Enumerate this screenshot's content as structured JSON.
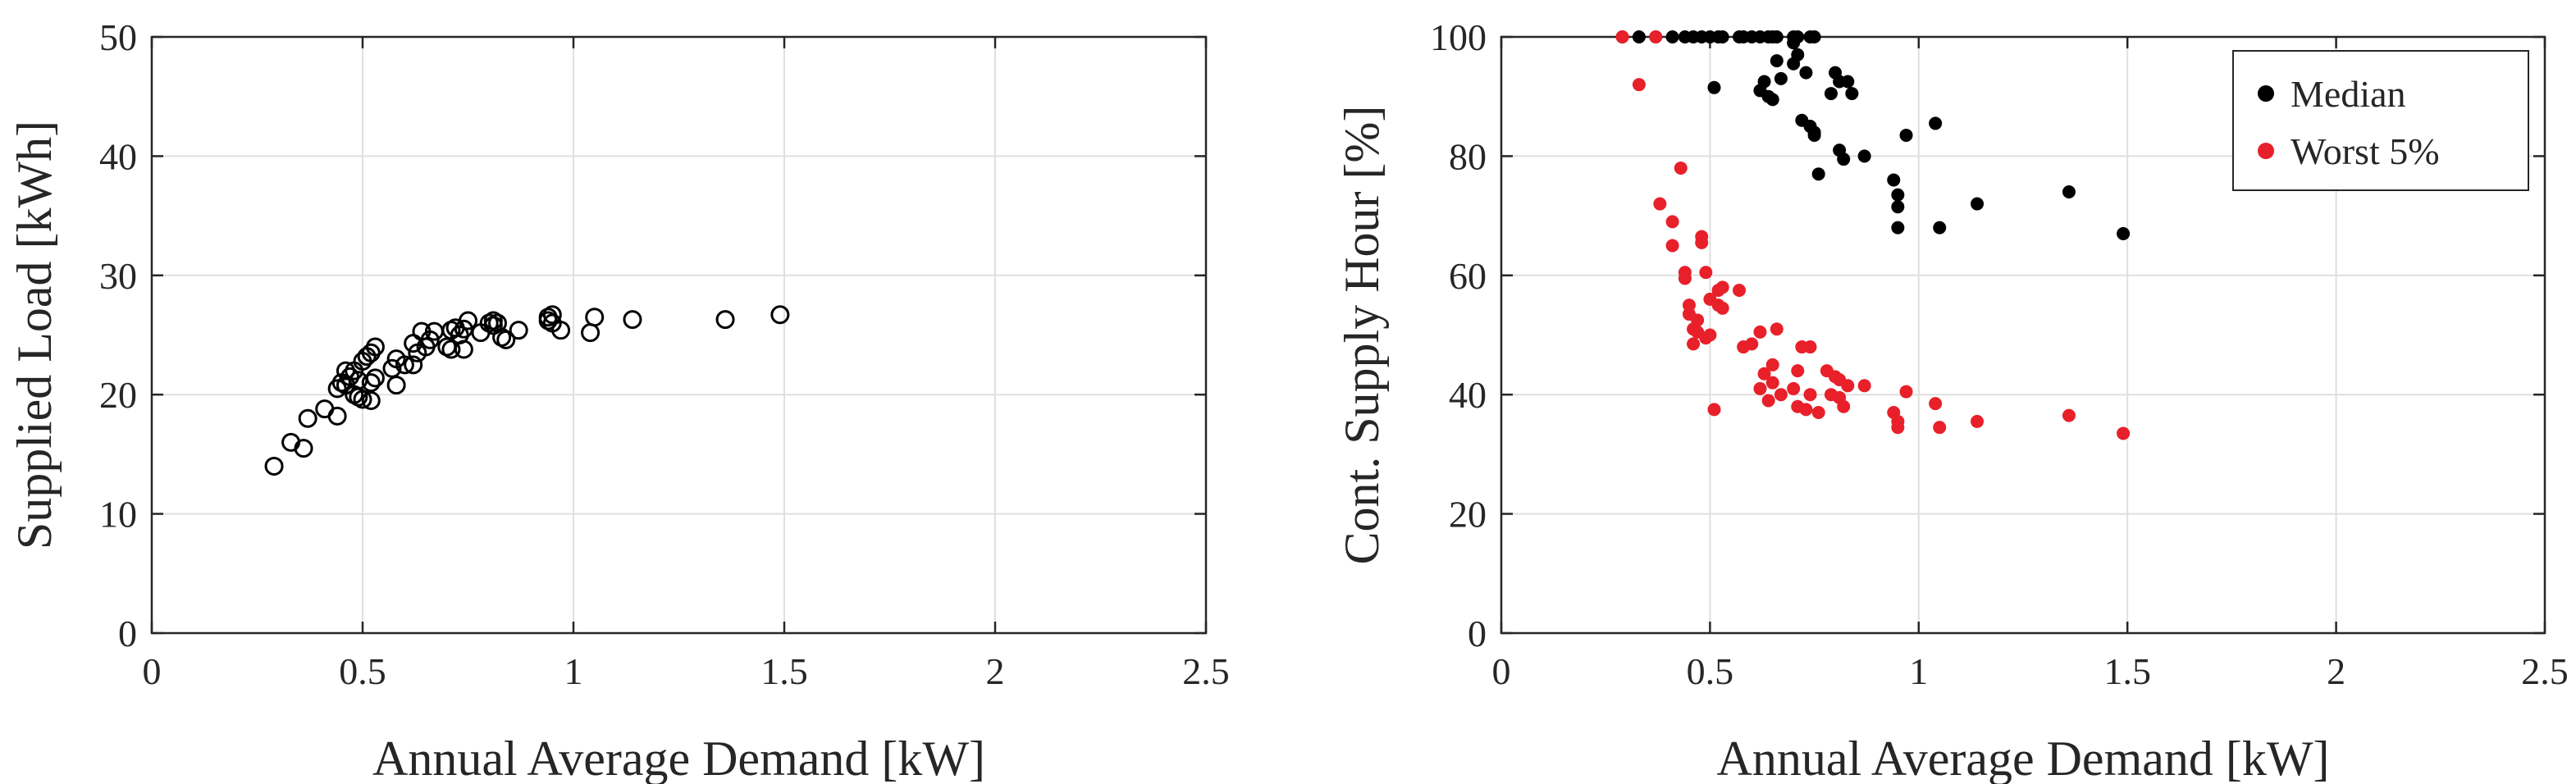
{
  "chart_data": [
    {
      "type": "scatter",
      "title": "",
      "xlabel": "Annual Average Demand [kW]",
      "ylabel": "Supplied Load [kWh]",
      "xlim": [
        0,
        2.5
      ],
      "ylim": [
        0,
        50
      ],
      "xticks": [
        0,
        0.5,
        1,
        1.5,
        2,
        2.5
      ],
      "yticks": [
        0,
        10,
        20,
        30,
        40,
        50
      ],
      "xtick_labels": [
        "0",
        "0.5",
        "1",
        "1.5",
        "2",
        "2.5"
      ],
      "ytick_labels": [
        "0",
        "10",
        "20",
        "30",
        "40",
        "50"
      ],
      "grid": true,
      "series": [
        {
          "name": "Supplied Load",
          "marker": "open-circle",
          "color": "#000000",
          "points": [
            [
              0.29,
              14.0
            ],
            [
              0.33,
              16.0
            ],
            [
              0.36,
              15.5
            ],
            [
              0.37,
              18.0
            ],
            [
              0.41,
              18.8
            ],
            [
              0.44,
              18.2
            ],
            [
              0.44,
              20.5
            ],
            [
              0.45,
              21.0
            ],
            [
              0.46,
              20.8
            ],
            [
              0.46,
              22.0
            ],
            [
              0.47,
              21.5
            ],
            [
              0.48,
              22.0
            ],
            [
              0.48,
              20.0
            ],
            [
              0.49,
              19.8
            ],
            [
              0.49,
              21.2
            ],
            [
              0.5,
              19.6
            ],
            [
              0.5,
              22.8
            ],
            [
              0.51,
              23.2
            ],
            [
              0.52,
              23.5
            ],
            [
              0.52,
              21.0
            ],
            [
              0.52,
              19.5
            ],
            [
              0.53,
              21.4
            ],
            [
              0.53,
              24.0
            ],
            [
              0.57,
              22.2
            ],
            [
              0.58,
              20.8
            ],
            [
              0.58,
              23.0
            ],
            [
              0.6,
              22.5
            ],
            [
              0.62,
              22.5
            ],
            [
              0.62,
              24.3
            ],
            [
              0.63,
              23.5
            ],
            [
              0.64,
              25.3
            ],
            [
              0.65,
              24.0
            ],
            [
              0.66,
              24.6
            ],
            [
              0.67,
              25.3
            ],
            [
              0.7,
              24.0
            ],
            [
              0.71,
              25.4
            ],
            [
              0.71,
              23.8
            ],
            [
              0.72,
              25.6
            ],
            [
              0.73,
              25.0
            ],
            [
              0.74,
              25.5
            ],
            [
              0.74,
              23.8
            ],
            [
              0.75,
              26.2
            ],
            [
              0.78,
              25.2
            ],
            [
              0.8,
              26.0
            ],
            [
              0.81,
              25.8
            ],
            [
              0.81,
              26.2
            ],
            [
              0.82,
              26.0
            ],
            [
              0.83,
              24.8
            ],
            [
              0.84,
              24.6
            ],
            [
              0.87,
              25.4
            ],
            [
              0.94,
              26.2
            ],
            [
              0.94,
              26.5
            ],
            [
              0.95,
              26.7
            ],
            [
              0.95,
              26.0
            ],
            [
              0.97,
              25.4
            ],
            [
              1.04,
              25.2
            ],
            [
              1.05,
              26.5
            ],
            [
              1.14,
              26.3
            ],
            [
              1.36,
              26.3
            ],
            [
              1.49,
              26.7
            ]
          ]
        }
      ]
    },
    {
      "type": "scatter",
      "title": "",
      "xlabel": "Annual Average Demand [kW]",
      "ylabel": "Cont. Supply Hour [%]",
      "xlim": [
        0,
        2.5
      ],
      "ylim": [
        0,
        100
      ],
      "xticks": [
        0,
        0.5,
        1,
        1.5,
        2,
        2.5
      ],
      "yticks": [
        0,
        20,
        40,
        60,
        80,
        100
      ],
      "xtick_labels": [
        "0",
        "0.5",
        "1",
        "1.5",
        "2",
        "2.5"
      ],
      "ytick_labels": [
        "0",
        "20",
        "40",
        "60",
        "80",
        "100"
      ],
      "grid": true,
      "legend": "top-right",
      "series": [
        {
          "name": "Median",
          "marker": "filled-circle",
          "color": "#000000",
          "points": [
            [
              0.29,
              100
            ],
            [
              0.33,
              100
            ],
            [
              0.37,
              100
            ],
            [
              0.41,
              100
            ],
            [
              0.44,
              100
            ],
            [
              0.46,
              100
            ],
            [
              0.48,
              100
            ],
            [
              0.5,
              100
            ],
            [
              0.52,
              100
            ],
            [
              0.53,
              100
            ],
            [
              0.57,
              100
            ],
            [
              0.58,
              100
            ],
            [
              0.6,
              100
            ],
            [
              0.62,
              100
            ],
            [
              0.64,
              100
            ],
            [
              0.65,
              100
            ],
            [
              0.66,
              100
            ],
            [
              0.7,
              100
            ],
            [
              0.71,
              100
            ],
            [
              0.74,
              100
            ],
            [
              0.75,
              100
            ],
            [
              0.7,
              99
            ],
            [
              0.51,
              91.5
            ],
            [
              0.62,
              91
            ],
            [
              0.63,
              92.5
            ],
            [
              0.64,
              90
            ],
            [
              0.65,
              89.5
            ],
            [
              0.66,
              96
            ],
            [
              0.67,
              93
            ],
            [
              0.7,
              95.5
            ],
            [
              0.71,
              97
            ],
            [
              0.72,
              86
            ],
            [
              0.73,
              94
            ],
            [
              0.74,
              85
            ],
            [
              0.75,
              83.5
            ],
            [
              0.75,
              84
            ],
            [
              0.76,
              77
            ],
            [
              0.79,
              90.5
            ],
            [
              0.8,
              94
            ],
            [
              0.81,
              92.5
            ],
            [
              0.81,
              81
            ],
            [
              0.82,
              79.5
            ],
            [
              0.83,
              92.5
            ],
            [
              0.84,
              90.5
            ],
            [
              0.87,
              80
            ],
            [
              0.94,
              76
            ],
            [
              0.95,
              73.5
            ],
            [
              0.95,
              71.5
            ],
            [
              0.95,
              68
            ],
            [
              0.97,
              83.5
            ],
            [
              1.04,
              85.5
            ],
            [
              1.05,
              68
            ],
            [
              1.14,
              72
            ],
            [
              1.36,
              74
            ],
            [
              1.49,
              67
            ]
          ]
        },
        {
          "name": "Worst 5%",
          "marker": "filled-circle",
          "color": "#e8202a",
          "points": [
            [
              0.29,
              100
            ],
            [
              0.33,
              92
            ],
            [
              0.37,
              100
            ],
            [
              0.38,
              72
            ],
            [
              0.41,
              69
            ],
            [
              0.41,
              65
            ],
            [
              0.43,
              78
            ],
            [
              0.44,
              59.5
            ],
            [
              0.44,
              60.5
            ],
            [
              0.45,
              55
            ],
            [
              0.45,
              53.5
            ],
            [
              0.46,
              51
            ],
            [
              0.46,
              48.5
            ],
            [
              0.47,
              52.5
            ],
            [
              0.47,
              50.5
            ],
            [
              0.48,
              66.5
            ],
            [
              0.48,
              65.5
            ],
            [
              0.49,
              60.5
            ],
            [
              0.49,
              49.5
            ],
            [
              0.5,
              56
            ],
            [
              0.5,
              50
            ],
            [
              0.51,
              37.5
            ],
            [
              0.52,
              57.5
            ],
            [
              0.52,
              55
            ],
            [
              0.53,
              58
            ],
            [
              0.53,
              54.5
            ],
            [
              0.57,
              57.5
            ],
            [
              0.58,
              48
            ],
            [
              0.6,
              48.5
            ],
            [
              0.62,
              50.5
            ],
            [
              0.62,
              41
            ],
            [
              0.63,
              43.5
            ],
            [
              0.64,
              39
            ],
            [
              0.65,
              42
            ],
            [
              0.65,
              45
            ],
            [
              0.66,
              51
            ],
            [
              0.67,
              40
            ],
            [
              0.7,
              41
            ],
            [
              0.71,
              44
            ],
            [
              0.71,
              38
            ],
            [
              0.72,
              48
            ],
            [
              0.73,
              37.5
            ],
            [
              0.74,
              40
            ],
            [
              0.74,
              48
            ],
            [
              0.76,
              37
            ],
            [
              0.78,
              44
            ],
            [
              0.79,
              40
            ],
            [
              0.8,
              43
            ],
            [
              0.81,
              42.5
            ],
            [
              0.81,
              39.5
            ],
            [
              0.82,
              38
            ],
            [
              0.83,
              41.5
            ],
            [
              0.87,
              41.5
            ],
            [
              0.94,
              37
            ],
            [
              0.95,
              35.5
            ],
            [
              0.95,
              34.5
            ],
            [
              0.97,
              40.5
            ],
            [
              1.04,
              38.5
            ],
            [
              1.05,
              34.5
            ],
            [
              1.14,
              35.5
            ],
            [
              1.36,
              36.5
            ],
            [
              1.49,
              33.5
            ]
          ]
        }
      ]
    }
  ],
  "colors": {
    "axis": "#262626",
    "grid": "#dfdfdf",
    "median": "#000000",
    "worst": "#e8202a"
  }
}
